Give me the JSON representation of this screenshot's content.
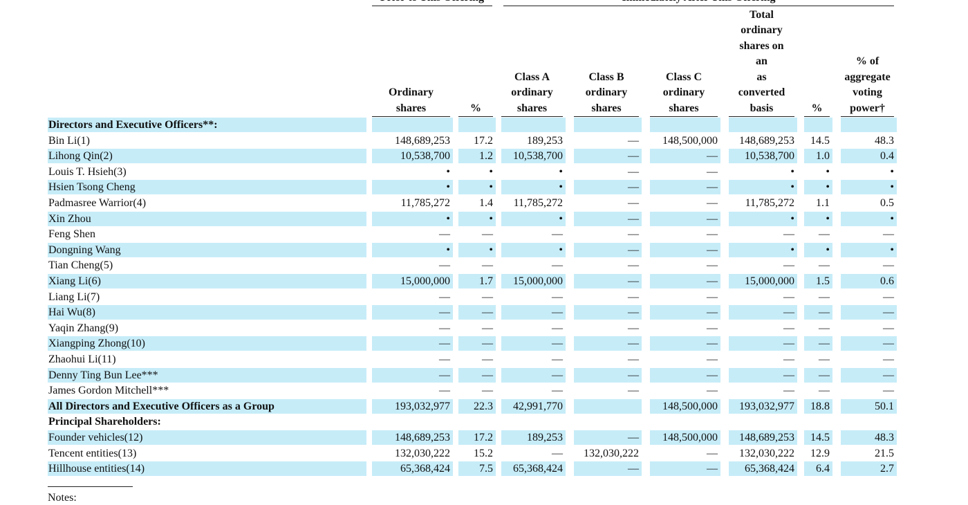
{
  "table": {
    "groups": [
      "Prior to This Offering",
      "Immediately After This Offering"
    ],
    "headers": [
      "Ordinary\nshares",
      "%",
      "Class A\nordinary\nshares",
      "Class B\nordinary\nshares",
      "Class C\nordinary\nshares",
      "Total\nordinary\nshares on\nan\nas\nconverted\nbasis",
      "%",
      "% of\naggregate\nvoting\npower†"
    ],
    "rows": [
      {
        "label": "Directors and Executive Officers**:",
        "bold": true
      },
      {
        "label": "Bin Li(1)",
        "cells": [
          "148,689,253",
          "17.2",
          "189,253",
          "—",
          "148,500,000",
          "148,689,253",
          "14.5",
          "48.3"
        ]
      },
      {
        "label": "Lihong Qin(2)",
        "cells": [
          "10,538,700",
          "1.2",
          "10,538,700",
          "—",
          "—",
          "10,538,700",
          "1.0",
          "0.4"
        ]
      },
      {
        "label": "Louis T. Hsieh(3)",
        "cells": [
          "•",
          "•",
          "•",
          "—",
          "—",
          "•",
          "•",
          "•"
        ]
      },
      {
        "label": "Hsien Tsong Cheng",
        "cells": [
          "•",
          "•",
          "•",
          "—",
          "—",
          "•",
          "•",
          "•"
        ]
      },
      {
        "label": "Padmasree Warrior(4)",
        "cells": [
          "11,785,272",
          "1.4",
          "11,785,272",
          "—",
          "—",
          "11,785,272",
          "1.1",
          "0.5"
        ]
      },
      {
        "label": "Xin Zhou",
        "cells": [
          "•",
          "•",
          "•",
          "—",
          "—",
          "•",
          "•",
          "•"
        ]
      },
      {
        "label": "Feng Shen",
        "cells": [
          "—",
          "—",
          "—",
          "—",
          "—",
          "—",
          "—",
          "—"
        ]
      },
      {
        "label": "Dongning Wang",
        "cells": [
          "•",
          "•",
          "•",
          "—",
          "—",
          "•",
          "•",
          "•"
        ]
      },
      {
        "label": "Tian Cheng(5)",
        "cells": [
          "—",
          "—",
          "—",
          "—",
          "—",
          "—",
          "—",
          "—"
        ]
      },
      {
        "label": "Xiang Li(6)",
        "cells": [
          "15,000,000",
          "1.7",
          "15,000,000",
          "—",
          "—",
          "15,000,000",
          "1.5",
          "0.6"
        ]
      },
      {
        "label": "Liang Li(7)",
        "cells": [
          "—",
          "—",
          "—",
          "—",
          "—",
          "—",
          "—",
          "—"
        ]
      },
      {
        "label": "Hai Wu(8)",
        "cells": [
          "—",
          "—",
          "—",
          "—",
          "—",
          "—",
          "—",
          "—"
        ]
      },
      {
        "label": "Yaqin Zhang(9)",
        "cells": [
          "—",
          "—",
          "—",
          "—",
          "—",
          "—",
          "—",
          "—"
        ]
      },
      {
        "label": "Xiangping Zhong(10)",
        "cells": [
          "—",
          "—",
          "—",
          "—",
          "—",
          "—",
          "—",
          "—"
        ]
      },
      {
        "label": "Zhaohui Li(11)",
        "cells": [
          "—",
          "—",
          "—",
          "—",
          "—",
          "—",
          "—",
          "—"
        ]
      },
      {
        "label": "Denny Ting Bun Lee***",
        "cells": [
          "—",
          "—",
          "—",
          "—",
          "—",
          "—",
          "—",
          "—"
        ]
      },
      {
        "label": "James Gordon Mitchell***",
        "cells": [
          "—",
          "—",
          "—",
          "—",
          "—",
          "—",
          "—",
          "—"
        ]
      },
      {
        "label": "All Directors and Executive Officers as a Group",
        "bold": true,
        "cells": [
          "193,032,977",
          "22.3",
          "42,991,770",
          null,
          "148,500,000",
          "193,032,977",
          "18.8",
          "50.1"
        ]
      },
      {
        "label": "Principal Shareholders:",
        "bold": true
      },
      {
        "label": "Founder vehicles(12)",
        "cells": [
          "148,689,253",
          "17.2",
          "189,253",
          "—",
          "148,500,000",
          "148,689,253",
          "14.5",
          "48.3"
        ]
      },
      {
        "label": "Tencent entities(13)",
        "cells": [
          "132,030,222",
          "15.2",
          "—",
          "132,030,222",
          "—",
          "132,030,222",
          "12.9",
          "21.5"
        ]
      },
      {
        "label": "Hillhouse entities(14)",
        "cells": [
          "65,368,424",
          "7.5",
          "65,368,424",
          "—",
          "—",
          "65,368,424",
          "6.4",
          "2.7"
        ]
      }
    ]
  },
  "notes": "Notes:"
}
